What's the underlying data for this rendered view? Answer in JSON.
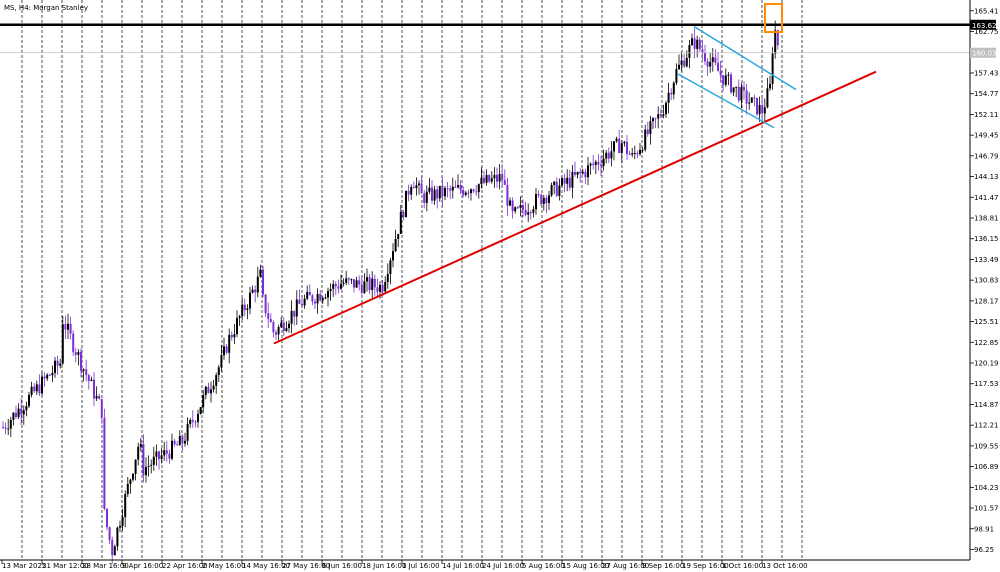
{
  "chart_data": {
    "type": "candlestick",
    "title": "MS, H4: Morgan Stanley",
    "symbol": "MS",
    "timeframe": "H4",
    "instrument": "Morgan Stanley",
    "ylim": [
      94.9,
      166.8
    ],
    "y_ticks": [
      "165.41",
      "162.75",
      "157.43",
      "154.77",
      "152.11",
      "149.45",
      "146.79",
      "144.13",
      "141.47",
      "138.81",
      "136.15",
      "133.49",
      "130.83",
      "128.17",
      "125.51",
      "122.85",
      "120.19",
      "117.53",
      "114.87",
      "112.21",
      "109.55",
      "106.89",
      "104.23",
      "101.57",
      "98.91",
      "96.25"
    ],
    "x_ticks": [
      "13 Mar 2025",
      "21 Mar 12:00",
      "28 Mar 16:00",
      "9 Apr 16:00",
      "22 Apr 16:00",
      "2 May 16:00",
      "14 May 16:00",
      "27 May 16:00",
      "6 Jun 16:00",
      "18 Jun 16:00",
      "1 Jul 16:00",
      "14 Jul 16:00",
      "24 Jul 16:00",
      "5 Aug 16:00",
      "15 Aug 16:00",
      "27 Aug 16:00",
      "9 Sep 16:00",
      "19 Sep 16:00",
      "1 Oct 16:00",
      "13 Oct 16:00"
    ],
    "price_labels": {
      "resistance": "163.62",
      "current": "160.03"
    },
    "price_values": {
      "resistance": 163.62,
      "current": 160.03
    },
    "colors": {
      "bull": "#000000",
      "bear": "#7b2fd6",
      "resistance": "#000000",
      "trendline": "#e00000",
      "channel": "#29a8e0",
      "highlight": "#ff8c00",
      "grid": "#000000"
    },
    "series_anchors": [
      {
        "x": "13 Mar 2025",
        "y": 111.8
      },
      {
        "x": "21 Mar 12:00",
        "y": 120.5
      },
      {
        "x": "24 Mar",
        "y": 126.0
      },
      {
        "x": "28 Mar 16:00",
        "y": 114.0
      },
      {
        "x": "4 Apr",
        "y": 101.0
      },
      {
        "x": "7 Apr",
        "y": 96.0
      },
      {
        "x": "9 Apr 16:00",
        "y": 106.5
      },
      {
        "x": "14 Apr",
        "y": 110.5
      },
      {
        "x": "22 Apr 16:00",
        "y": 110.0
      },
      {
        "x": "2 May 16:00",
        "y": 120.5
      },
      {
        "x": "9 May",
        "y": 123.0
      },
      {
        "x": "14 May 16:00",
        "y": 131.8
      },
      {
        "x": "20 May",
        "y": 128.5
      },
      {
        "x": "23 May",
        "y": 124.0
      },
      {
        "x": "27 May 16:00",
        "y": 128.0
      },
      {
        "x": "6 Jun 16:00",
        "y": 130.5
      },
      {
        "x": "18 Jun 16:00",
        "y": 130.0
      },
      {
        "x": "1 Jul 16:00",
        "y": 141.5
      },
      {
        "x": "7 Jul",
        "y": 144.0
      },
      {
        "x": "14 Jul 16:00",
        "y": 142.5
      },
      {
        "x": "24 Jul 16:00",
        "y": 144.0
      },
      {
        "x": "31 Jul",
        "y": 139.0
      },
      {
        "x": "5 Aug 16:00",
        "y": 141.5
      },
      {
        "x": "15 Aug 16:00",
        "y": 144.5
      },
      {
        "x": "27 Aug 16:00",
        "y": 148.5
      },
      {
        "x": "3 Sep",
        "y": 146.5
      },
      {
        "x": "9 Sep 16:00",
        "y": 152.5
      },
      {
        "x": "15 Sep",
        "y": 157.5
      },
      {
        "x": "19 Sep 16:00",
        "y": 161.5
      },
      {
        "x": "25 Sep",
        "y": 157.0
      },
      {
        "x": "1 Oct 16:00",
        "y": 154.5
      },
      {
        "x": "10 Oct",
        "y": 152.5
      },
      {
        "x": "13 Oct 16:00",
        "y": 155.5
      },
      {
        "x": "14 Oct",
        "y": 163.5
      },
      {
        "x": "15 Oct",
        "y": 160.0
      }
    ],
    "trendline": {
      "from": {
        "x": "23 May",
        "y": 122.7
      },
      "to": {
        "x": "24 Oct",
        "y": 157.6
      }
    },
    "channel_upper": {
      "from": {
        "x": "19 Sep 16:00",
        "y": 163.4
      },
      "to": {
        "x": "20 Oct",
        "y": 155.3
      }
    },
    "channel_lower": {
      "from": {
        "x": "16 Sep",
        "y": 157.3
      },
      "to": {
        "x": "14 Oct",
        "y": 150.4
      }
    },
    "highlight_box": {
      "x": "14 Oct",
      "y_range": [
        163.2,
        166.8
      ]
    },
    "grid": "vertical-dashed"
  }
}
